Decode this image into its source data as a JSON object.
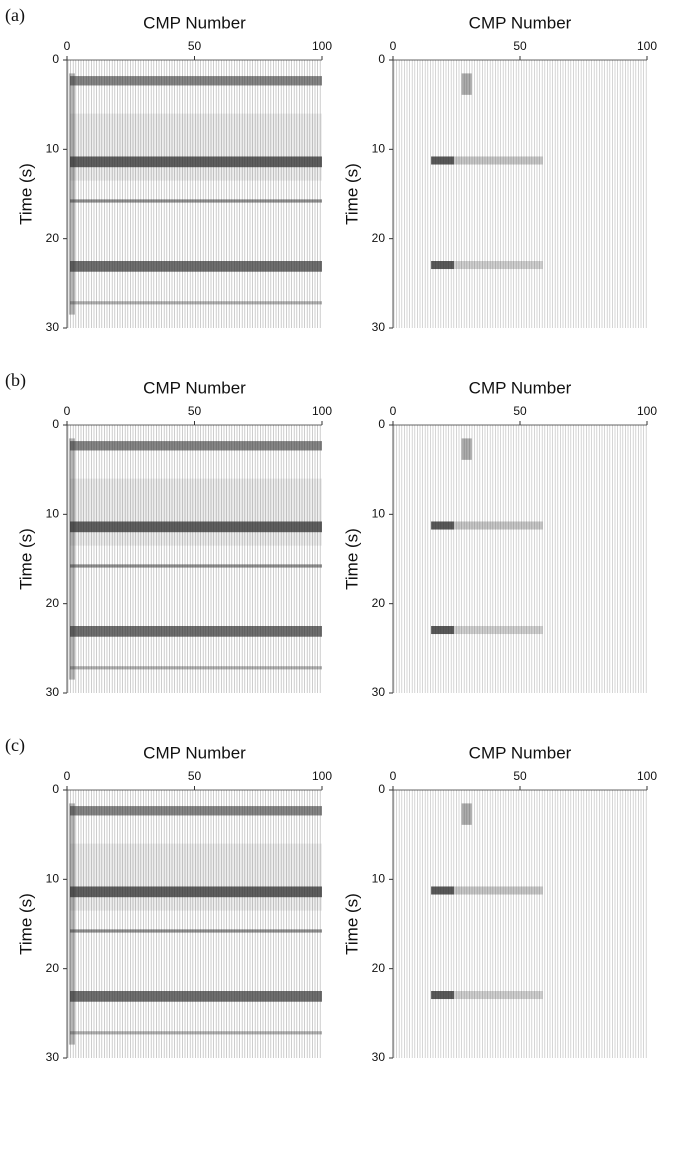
{
  "chart_data": [
    {
      "type": "seismic",
      "panel_label": "(a)",
      "title": "CMP Number",
      "ylabel": "Time (s)",
      "xlim": [
        0,
        100
      ],
      "ylim": [
        0,
        30
      ],
      "y_inverted": true,
      "xticks": [
        0,
        50,
        100
      ],
      "yticks": [
        0,
        10,
        20,
        30
      ]
    },
    {
      "type": "seismic",
      "title": "CMP Number",
      "ylabel": "Time (s)",
      "xlim": [
        0,
        100
      ],
      "ylim": [
        0,
        30
      ],
      "y_inverted": true,
      "xticks": [
        0,
        50,
        100
      ],
      "yticks": [
        0,
        10,
        20,
        30
      ]
    },
    {
      "type": "seismic",
      "panel_label": "(b)",
      "title": "CMP Number",
      "ylabel": "Time (s)",
      "xlim": [
        0,
        100
      ],
      "ylim": [
        0,
        30
      ],
      "y_inverted": true,
      "xticks": [
        0,
        50,
        100
      ],
      "yticks": [
        0,
        10,
        20,
        30
      ]
    },
    {
      "type": "seismic",
      "title": "CMP Number",
      "ylabel": "Time (s)",
      "xlim": [
        0,
        100
      ],
      "ylim": [
        0,
        30
      ],
      "y_inverted": true,
      "xticks": [
        0,
        50,
        100
      ],
      "yticks": [
        0,
        10,
        20,
        30
      ]
    },
    {
      "type": "seismic",
      "panel_label": "(c)",
      "title": "CMP Number",
      "ylabel": "Time (s)",
      "xlim": [
        0,
        100
      ],
      "ylim": [
        0,
        30
      ],
      "y_inverted": true,
      "xticks": [
        0,
        50,
        100
      ],
      "yticks": [
        0,
        10,
        20,
        30
      ]
    },
    {
      "type": "seismic",
      "title": "CMP Number",
      "ylabel": "Time (s)",
      "xlim": [
        0,
        100
      ],
      "ylim": [
        0,
        30
      ],
      "y_inverted": true,
      "xticks": [
        0,
        50,
        100
      ],
      "yticks": [
        0,
        10,
        20,
        30
      ]
    }
  ]
}
